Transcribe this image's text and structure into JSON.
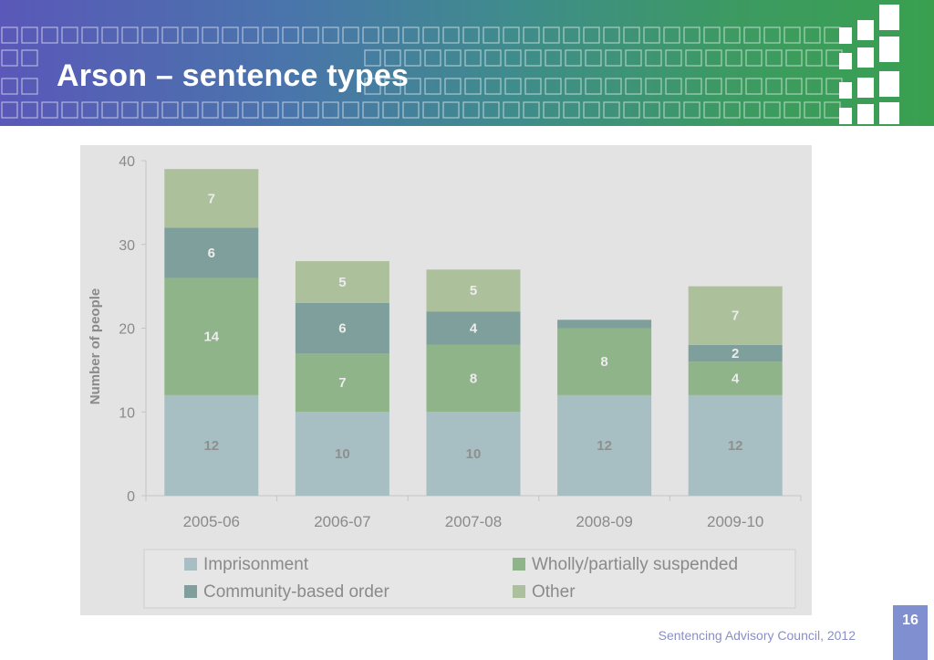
{
  "header": {
    "title": "Arson – sentence types"
  },
  "chart_data": {
    "type": "bar",
    "stacked": true,
    "categories": [
      "2005-06",
      "2006-07",
      "2007-08",
      "2008-09",
      "2009-10"
    ],
    "series": [
      {
        "name": "Imprisonment",
        "values": [
          12,
          10,
          10,
          12,
          12
        ],
        "labels": [
          "12",
          "10",
          "10",
          "12",
          "12"
        ],
        "color": "#a7bec2"
      },
      {
        "name": "Wholly/partially suspended",
        "values": [
          14,
          7,
          8,
          8,
          4
        ],
        "labels": [
          "14",
          "7",
          "8",
          "8",
          "4"
        ],
        "color": "#8fb48a"
      },
      {
        "name": "Community-based order",
        "values": [
          6,
          6,
          4,
          1,
          2
        ],
        "labels": [
          "6",
          "6",
          "4",
          "",
          "2"
        ],
        "color": "#7f9f9c"
      },
      {
        "name": "Other",
        "values": [
          7,
          5,
          5,
          0,
          7
        ],
        "labels": [
          "7",
          "5",
          "5",
          "",
          "7"
        ],
        "color": "#acc09c"
      }
    ],
    "ylabel": "Number of people",
    "xlabel": "",
    "ylim": [
      0,
      40
    ],
    "yticks": [
      "0",
      "10",
      "20",
      "30",
      "40"
    ],
    "grid": false,
    "legend_position": "bottom"
  },
  "footer": {
    "page_number": "16",
    "credit": "Sentencing Advisory Council, 2012"
  }
}
